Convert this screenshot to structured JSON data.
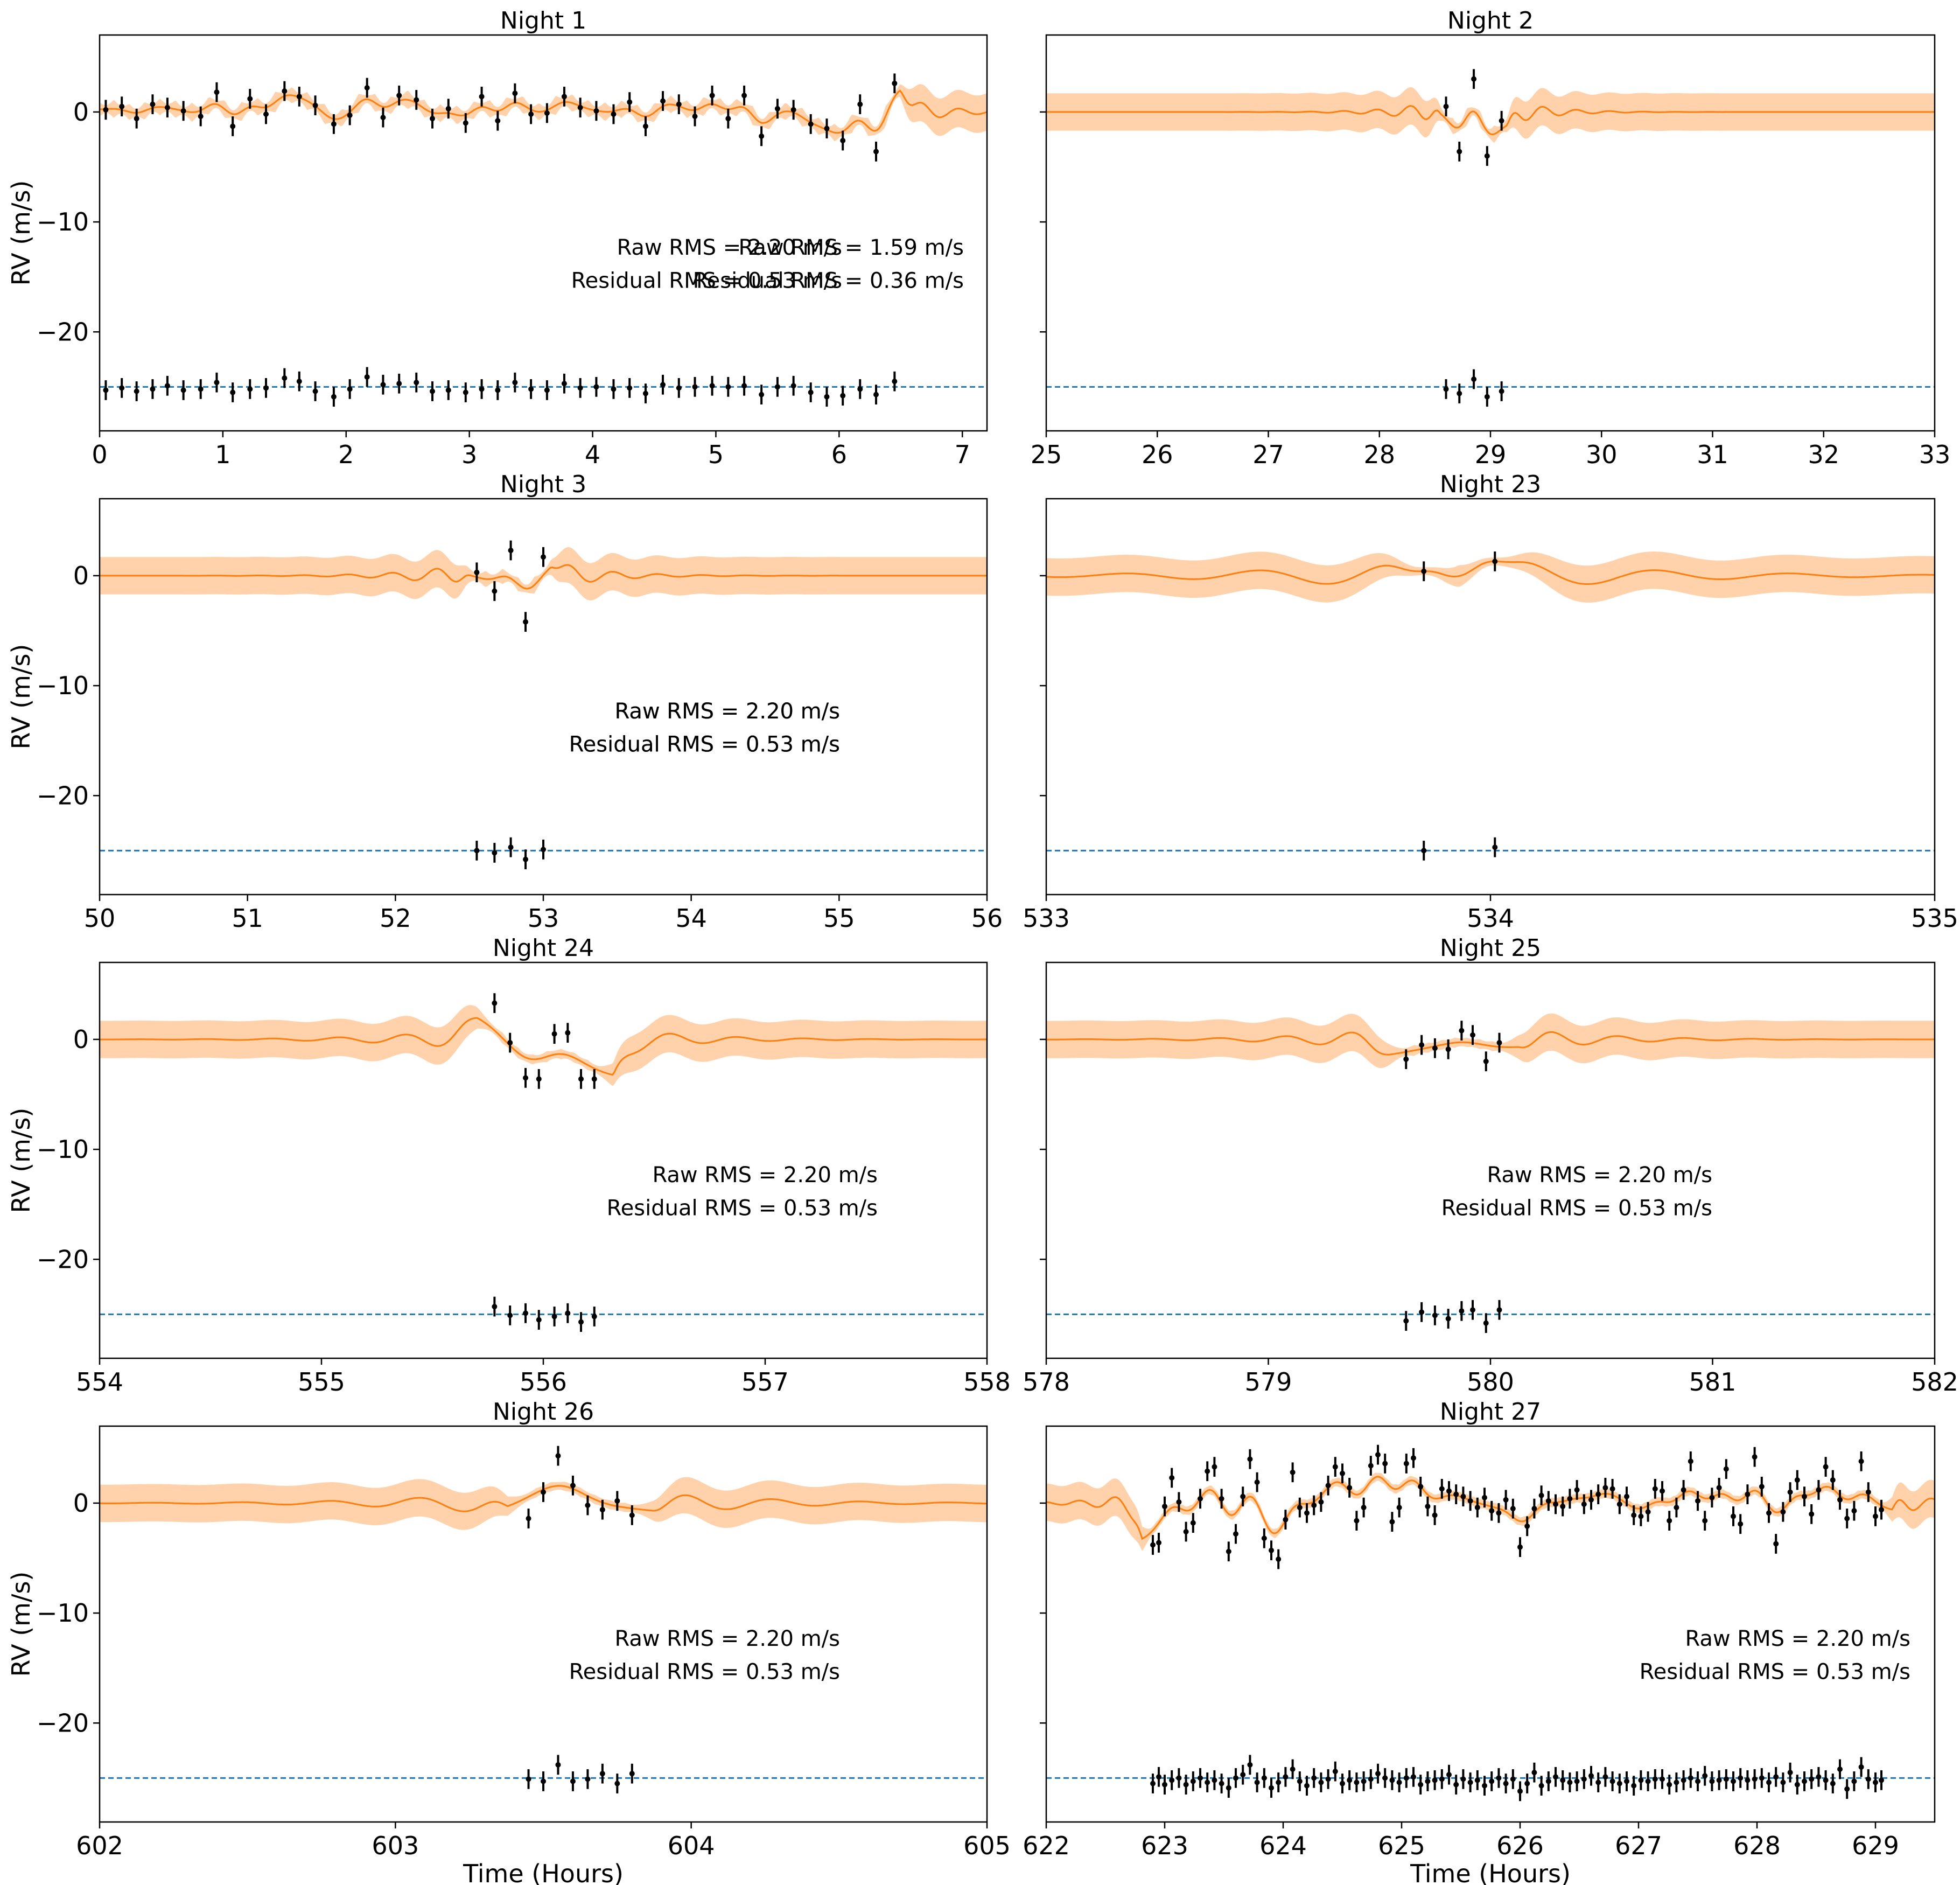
{
  "figure": {
    "ylabel": "RV (m/s)",
    "xlabel": "Time (Hours)",
    "y_ticks": [
      0,
      -10,
      -20
    ],
    "y_tick_labels": [
      "0",
      "−10",
      "−20"
    ],
    "ylim": [
      -29,
      7
    ],
    "residual_offset": -25
  },
  "colors": {
    "model_line": "#ff7f0e",
    "model_band": "#ffd2ab",
    "residual_line": "#1f77b4",
    "points": "#000000"
  },
  "chart_data": [
    {
      "type": "line",
      "title": "Night 1",
      "xlim": [
        0,
        7.2
      ],
      "xticks": [
        0,
        1,
        2,
        3,
        4,
        5,
        6,
        7
      ],
      "ylim": [
        -29,
        7
      ],
      "rms": [
        "Raw RMS = 1.59 m/s",
        "Residual RMS = 0.36 m/s"
      ],
      "series": [
        {
          "name": "RV data",
          "x": [
            0.05,
            0.18,
            0.3,
            0.43,
            0.55,
            0.68,
            0.82,
            0.95,
            1.08,
            1.22,
            1.35,
            1.5,
            1.62,
            1.75,
            1.9,
            2.03,
            2.17,
            2.3,
            2.43,
            2.57,
            2.7,
            2.83,
            2.97,
            3.1,
            3.23,
            3.37,
            3.5,
            3.63,
            3.77,
            3.9,
            4.03,
            4.17,
            4.3,
            4.43,
            4.57,
            4.7,
            4.83,
            4.97,
            5.1,
            5.23,
            5.37,
            5.5,
            5.63,
            5.77,
            5.9,
            6.03,
            6.17,
            6.3,
            6.45
          ],
          "y": [
            0.2,
            0.5,
            -0.6,
            0.7,
            0.4,
            0.1,
            -0.4,
            1.8,
            -1.3,
            1.2,
            -0.2,
            1.9,
            1.4,
            0.6,
            -1.1,
            -0.3,
            2.2,
            -0.5,
            1.5,
            1.1,
            -0.6,
            0.3,
            -1.0,
            1.4,
            -0.8,
            1.7,
            -0.2,
            -0.1,
            1.4,
            0.4,
            0.1,
            -0.2,
            0.9,
            -1.3,
            1.0,
            0.7,
            -0.4,
            1.5,
            -0.6,
            1.5,
            -2.2,
            0.3,
            0.2,
            -1.1,
            -1.5,
            -2.6,
            0.7,
            -3.6,
            2.6
          ]
        },
        {
          "name": "Residuals",
          "y": [
            -0.3,
            -0.1,
            -0.4,
            -0.2,
            0.1,
            -0.3,
            -0.2,
            0.4,
            -0.5,
            -0.2,
            -0.1,
            0.8,
            0.5,
            -0.4,
            -0.9,
            -0.2,
            0.9,
            0.2,
            0.3,
            0.4,
            -0.4,
            -0.3,
            -0.5,
            -0.2,
            -0.3,
            0.4,
            -0.2,
            -0.3,
            0.3,
            -0.1,
            0.0,
            -0.2,
            -0.1,
            -0.6,
            0.2,
            -0.1,
            0.0,
            0.1,
            0.0,
            0.1,
            -0.7,
            0.0,
            0.1,
            -0.5,
            -0.9,
            -0.8,
            -0.2,
            -0.7,
            0.5
          ]
        }
      ]
    },
    {
      "type": "line",
      "title": "Night 2",
      "xlim": [
        25,
        33
      ],
      "xticks": [
        25,
        26,
        27,
        28,
        29,
        30,
        31,
        32,
        33
      ],
      "ylim": [
        -29,
        7
      ],
      "rms": [
        "Raw RMS = 2.20 m/s",
        "Residual RMS = 0.53 m/s"
      ],
      "series": [
        {
          "name": "RV data",
          "x": [
            28.6,
            28.72,
            28.85,
            28.97,
            29.1
          ],
          "y": [
            0.5,
            -3.6,
            3.0,
            -4.0,
            -0.8
          ]
        },
        {
          "name": "Residuals",
          "y": [
            -0.2,
            -0.6,
            0.7,
            -0.9,
            -0.4
          ]
        }
      ]
    },
    {
      "type": "line",
      "title": "Night 3",
      "xlim": [
        50,
        56
      ],
      "xticks": [
        50,
        51,
        52,
        53,
        54,
        55,
        56
      ],
      "ylim": [
        -29,
        7
      ],
      "rms": [
        "Raw RMS = 2.20 m/s",
        "Residual RMS = 0.53 m/s"
      ],
      "series": [
        {
          "name": "RV data",
          "x": [
            52.55,
            52.67,
            52.78,
            52.88,
            53.0
          ],
          "y": [
            0.3,
            -1.4,
            2.3,
            -4.2,
            1.7
          ]
        },
        {
          "name": "Residuals",
          "y": [
            0.0,
            -0.2,
            0.3,
            -0.8,
            0.1
          ]
        }
      ]
    },
    {
      "type": "line",
      "title": "Night 23",
      "xlim": [
        533,
        535
      ],
      "xticks": [
        533,
        534,
        535
      ],
      "ylim": [
        -29,
        7
      ],
      "rms": [
        "Raw RMS = 2.20 m/s",
        "Residual RMS = 0.53 m/s"
      ],
      "series": [
        {
          "name": "RV data",
          "x": [
            533.85,
            534.01
          ],
          "y": [
            0.4,
            1.3
          ]
        },
        {
          "name": "Residuals",
          "y": [
            0.0,
            0.3
          ]
        }
      ]
    },
    {
      "type": "line",
      "title": "Night 24",
      "xlim": [
        554,
        558
      ],
      "xticks": [
        554,
        555,
        556,
        557,
        558
      ],
      "ylim": [
        -29,
        7
      ],
      "rms": [
        "Raw RMS = 2.20 m/s",
        "Residual RMS = 0.53 m/s"
      ],
      "series": [
        {
          "name": "RV data",
          "x": [
            555.78,
            555.85,
            555.92,
            555.98,
            556.05,
            556.11,
            556.17,
            556.23
          ],
          "y": [
            3.3,
            -0.3,
            -3.5,
            -3.6,
            0.5,
            0.6,
            -3.6,
            -3.6
          ]
        },
        {
          "name": "Residuals",
          "y": [
            0.7,
            -0.1,
            0.1,
            -0.5,
            -0.2,
            0.1,
            -0.7,
            -0.2
          ]
        }
      ]
    },
    {
      "type": "line",
      "title": "Night 25",
      "xlim": [
        578,
        582
      ],
      "xticks": [
        578,
        579,
        580,
        581,
        582
      ],
      "ylim": [
        -29,
        7
      ],
      "rms": [
        "Raw RMS = 2.20 m/s",
        "Residual RMS = 0.53 m/s"
      ],
      "series": [
        {
          "name": "RV data",
          "x": [
            579.62,
            579.69,
            579.75,
            579.81,
            579.87,
            579.92,
            579.98,
            580.04
          ],
          "y": [
            -1.8,
            -0.5,
            -0.8,
            -0.9,
            0.8,
            0.4,
            -2.0,
            -0.3
          ]
        },
        {
          "name": "Residuals",
          "y": [
            -0.6,
            0.2,
            -0.1,
            -0.4,
            0.3,
            0.4,
            -0.8,
            0.4
          ]
        }
      ]
    },
    {
      "type": "line",
      "title": "Night 26",
      "xlim": [
        602,
        605
      ],
      "xticks": [
        602,
        603,
        604,
        605
      ],
      "ylim": [
        -29,
        7
      ],
      "rms": [
        "Raw RMS = 2.20 m/s",
        "Residual RMS = 0.53 m/s"
      ],
      "series": [
        {
          "name": "RV data",
          "x": [
            603.45,
            603.5,
            603.55,
            603.6,
            603.65,
            603.7,
            603.75,
            603.8
          ],
          "y": [
            -1.4,
            1.0,
            4.3,
            1.6,
            -0.2,
            -0.6,
            0.2,
            -1.1
          ]
        },
        {
          "name": "Residuals",
          "y": [
            -0.1,
            -0.3,
            1.2,
            -0.3,
            -0.1,
            0.4,
            -0.5,
            0.4
          ]
        }
      ]
    },
    {
      "type": "line",
      "title": "Night 27",
      "xlim": [
        622,
        629.5
      ],
      "xticks": [
        622,
        623,
        624,
        625,
        626,
        627,
        628,
        629
      ],
      "ylim": [
        -29,
        7
      ],
      "rms": [
        "Raw RMS = 2.20 m/s",
        "Residual RMS = 0.53 m/s"
      ],
      "series": [
        {
          "name": "RV data",
          "x": [
            622.9,
            622.95,
            623.0,
            623.06,
            623.12,
            623.18,
            623.24,
            623.3,
            623.36,
            623.42,
            623.48,
            623.54,
            623.6,
            623.66,
            623.72,
            623.78,
            623.84,
            623.9,
            623.96,
            624.02,
            624.08,
            624.14,
            624.2,
            624.26,
            624.32,
            624.38,
            624.44,
            624.5,
            624.56,
            624.62,
            624.68,
            624.74,
            624.8,
            624.86,
            624.92,
            624.98,
            625.04,
            625.1,
            625.16,
            625.22,
            625.28,
            625.34,
            625.4,
            625.46,
            625.52,
            625.58,
            625.64,
            625.7,
            625.76,
            625.82,
            625.88,
            625.94,
            626.0,
            626.06,
            626.12,
            626.18,
            626.24,
            626.3,
            626.36,
            626.42,
            626.48,
            626.54,
            626.6,
            626.66,
            626.72,
            626.78,
            626.84,
            626.9,
            626.96,
            627.02,
            627.08,
            627.14,
            627.2,
            627.26,
            627.32,
            627.38,
            627.44,
            627.5,
            627.56,
            627.62,
            627.68,
            627.74,
            627.8,
            627.86,
            627.92,
            627.98,
            628.04,
            628.1,
            628.16,
            628.22,
            628.28,
            628.34,
            628.4,
            628.46,
            628.52,
            628.58,
            628.64,
            628.7,
            628.76,
            628.82,
            628.88,
            628.94,
            629.0,
            629.05
          ],
          "y": [
            -3.8,
            -3.6,
            -0.3,
            2.3,
            0.1,
            -2.6,
            -1.8,
            0.4,
            2.9,
            3.3,
            0.4,
            -4.4,
            -2.8,
            0.6,
            4.0,
            1.9,
            -3.2,
            -4.3,
            -5.1,
            -1.5,
            2.8,
            -0.4,
            -0.9,
            -0.2,
            0.1,
            1.6,
            3.3,
            2.7,
            1.4,
            -1.6,
            -0.4,
            3.4,
            4.4,
            3.6,
            -1.7,
            -0.4,
            3.6,
            4.1,
            1.5,
            -0.3,
            -1.1,
            1.3,
            1.1,
            0.8,
            0.6,
            0.2,
            -0.4,
            0.5,
            -0.7,
            -0.9,
            0.3,
            -0.5,
            -4.0,
            -2.1,
            -0.5,
            0.7,
            0.2,
            -0.1,
            -0.3,
            0.4,
            1.2,
            -0.1,
            0.3,
            0.8,
            1.4,
            1.3,
            -0.1,
            0.6,
            -1.1,
            -1.2,
            -0.8,
            1.3,
            1.1,
            -1.6,
            -0.4,
            1.2,
            3.8,
            0.2,
            -1.6,
            0.5,
            1.4,
            3.1,
            -1.2,
            -1.9,
            0.8,
            4.2,
            1.5,
            -0.9,
            -3.7,
            -0.8,
            1.0,
            2.1,
            0.6,
            -1.0,
            1.2,
            3.3,
            2.1,
            0.3,
            -1.4,
            -0.7,
            3.8,
            1.0,
            -1.2,
            -0.6
          ]
        },
        {
          "name": "Residuals",
          "y": [
            -0.5,
            0.1,
            -0.6,
            -0.2,
            0.0,
            -0.6,
            -0.3,
            0.0,
            -0.4,
            -0.2,
            -0.5,
            -0.9,
            0.0,
            0.3,
            1.2,
            -0.4,
            0.0,
            -0.9,
            -0.4,
            0.1,
            0.8,
            -0.3,
            -0.7,
            0.0,
            -0.4,
            -0.1,
            0.6,
            -0.5,
            -0.2,
            -0.4,
            -0.3,
            -0.1,
            0.4,
            0.0,
            -0.2,
            -0.4,
            0.0,
            0.1,
            -0.6,
            -0.3,
            -0.2,
            -0.1,
            0.3,
            -0.6,
            -0.1,
            -0.4,
            -0.2,
            -0.7,
            -0.3,
            0.0,
            -0.5,
            -0.1,
            -1.2,
            -0.5,
            0.5,
            -0.7,
            -0.3,
            0.1,
            -0.2,
            -0.4,
            -0.3,
            -0.1,
            0.2,
            -0.4,
            0.1,
            -0.3,
            -0.5,
            -0.3,
            -0.7,
            -0.2,
            -0.3,
            -0.1,
            -0.1,
            -0.6,
            -0.4,
            -0.2,
            0.0,
            -0.3,
            0.2,
            -0.3,
            -0.2,
            -0.1,
            -0.3,
            0.0,
            -0.2,
            -0.1,
            0.0,
            -0.4,
            0.1,
            -0.4,
            0.5,
            -0.6,
            -0.3,
            -0.1,
            0.1,
            -0.2,
            -0.5,
            0.8,
            -1.0,
            -0.3,
            1.0,
            -0.1,
            -0.4,
            -0.2
          ]
        }
      ]
    }
  ]
}
